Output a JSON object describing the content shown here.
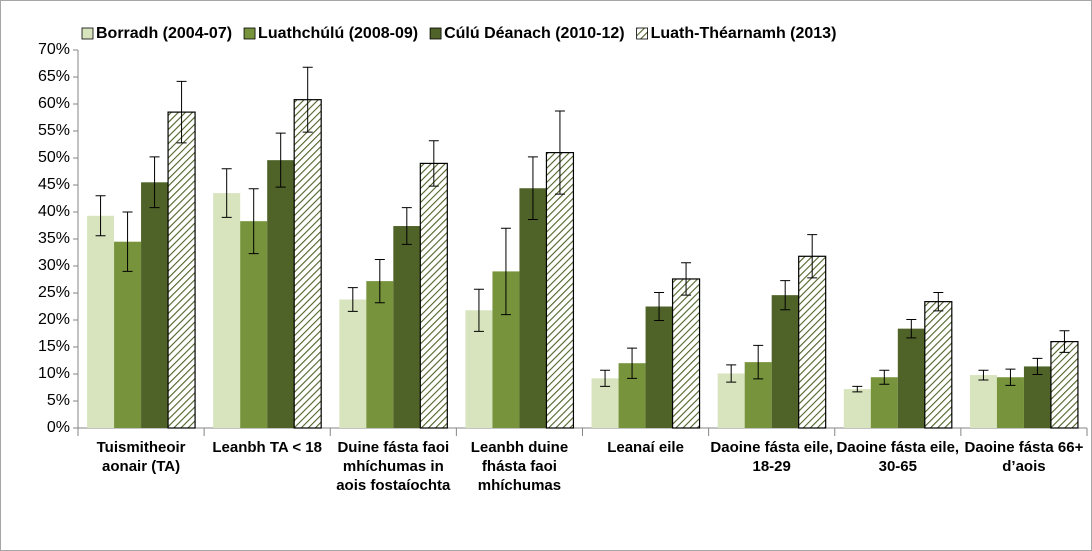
{
  "chart_data": {
    "type": "bar",
    "categories": [
      "Tuismitheoir aonair (TA)",
      "Leanbh TA < 18",
      "Duine fásta faoi mhíchumas in aois fostaíochta",
      "Leanbh duine fhásta faoi mhíchumas",
      "Leanaí eile",
      "Daoine fásta eile, 18-29",
      "Daoine fásta eile, 30-65",
      "Daoine fásta 66+ d’aois"
    ],
    "series": [
      {
        "name": "Borradh (2004-07)",
        "color": "#d7e4bd",
        "values": [
          39.3,
          43.5,
          23.8,
          21.8,
          9.2,
          10.1,
          7.2,
          9.8
        ],
        "errors": [
          3.7,
          4.5,
          2.2,
          3.9,
          1.5,
          1.6,
          0.5,
          0.9
        ]
      },
      {
        "name": "Luathchúlú (2008-09)",
        "color": "#77933c",
        "values": [
          34.5,
          38.3,
          27.2,
          29.0,
          12.0,
          12.2,
          9.4,
          9.4
        ],
        "errors": [
          5.5,
          6.0,
          4.0,
          8.0,
          2.8,
          3.1,
          1.3,
          1.5
        ]
      },
      {
        "name": "Cúlú Déanach (2010-12)",
        "color": "#4f6228",
        "values": [
          45.5,
          49.6,
          37.4,
          44.4,
          22.5,
          24.6,
          18.4,
          11.4
        ],
        "errors": [
          4.7,
          5.0,
          3.4,
          5.8,
          2.6,
          2.7,
          1.7,
          1.5
        ]
      },
      {
        "name": "Luath-Théarnamh (2013)",
        "color": "#4f6228",
        "pattern": "hatch",
        "values": [
          58.5,
          60.8,
          49.0,
          51.0,
          27.6,
          31.8,
          23.4,
          16.0
        ],
        "errors": [
          5.7,
          6.0,
          4.2,
          7.7,
          3.0,
          4.0,
          1.7,
          2.0
        ]
      }
    ],
    "ylim": [
      0,
      70
    ],
    "yticks": [
      {
        "value": 0,
        "label": "0%"
      },
      {
        "value": 5,
        "label": "5%"
      },
      {
        "value": 10,
        "label": "10%"
      },
      {
        "value": 15,
        "label": "15%"
      },
      {
        "value": 20,
        "label": "20%"
      },
      {
        "value": 25,
        "label": "25%"
      },
      {
        "value": 30,
        "label": "30%"
      },
      {
        "value": 35,
        "label": "35%"
      },
      {
        "value": 40,
        "label": "40%"
      },
      {
        "value": 45,
        "label": "45%"
      },
      {
        "value": 50,
        "label": "50%"
      },
      {
        "value": 55,
        "label": "55%"
      },
      {
        "value": 60,
        "label": "60%"
      },
      {
        "value": 65,
        "label": "65%"
      },
      {
        "value": 70,
        "label": "70%"
      }
    ],
    "grid": false,
    "legend": "top"
  }
}
